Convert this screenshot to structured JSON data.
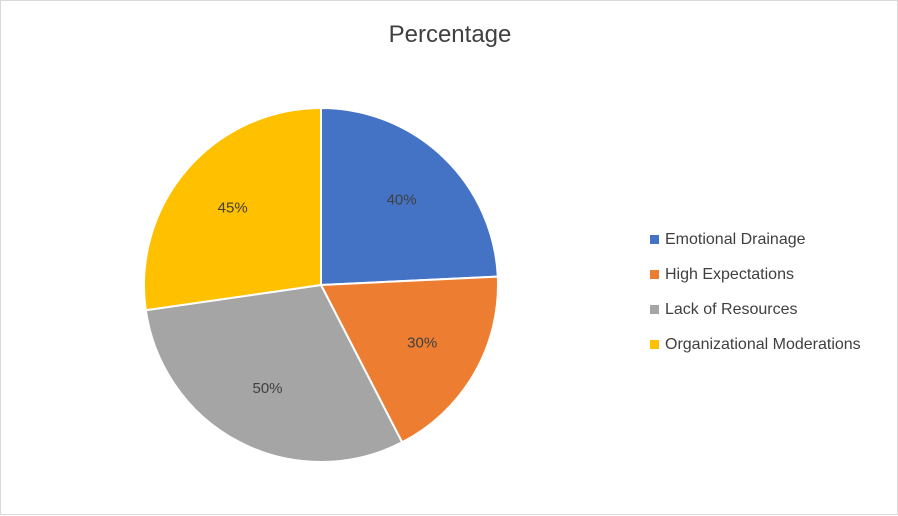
{
  "chart_data": {
    "type": "pie",
    "title": "Percentage",
    "categories": [
      "Emotional Drainage",
      "High Expectations",
      "Lack of Resources",
      "Organizational Moderations"
    ],
    "values": [
      40,
      30,
      50,
      45
    ],
    "data_labels": [
      "40%",
      "30%",
      "50%",
      "45%"
    ],
    "colors": [
      "#4472c4",
      "#ed7d31",
      "#a5a5a5",
      "#ffc000"
    ],
    "legend_position": "right"
  }
}
